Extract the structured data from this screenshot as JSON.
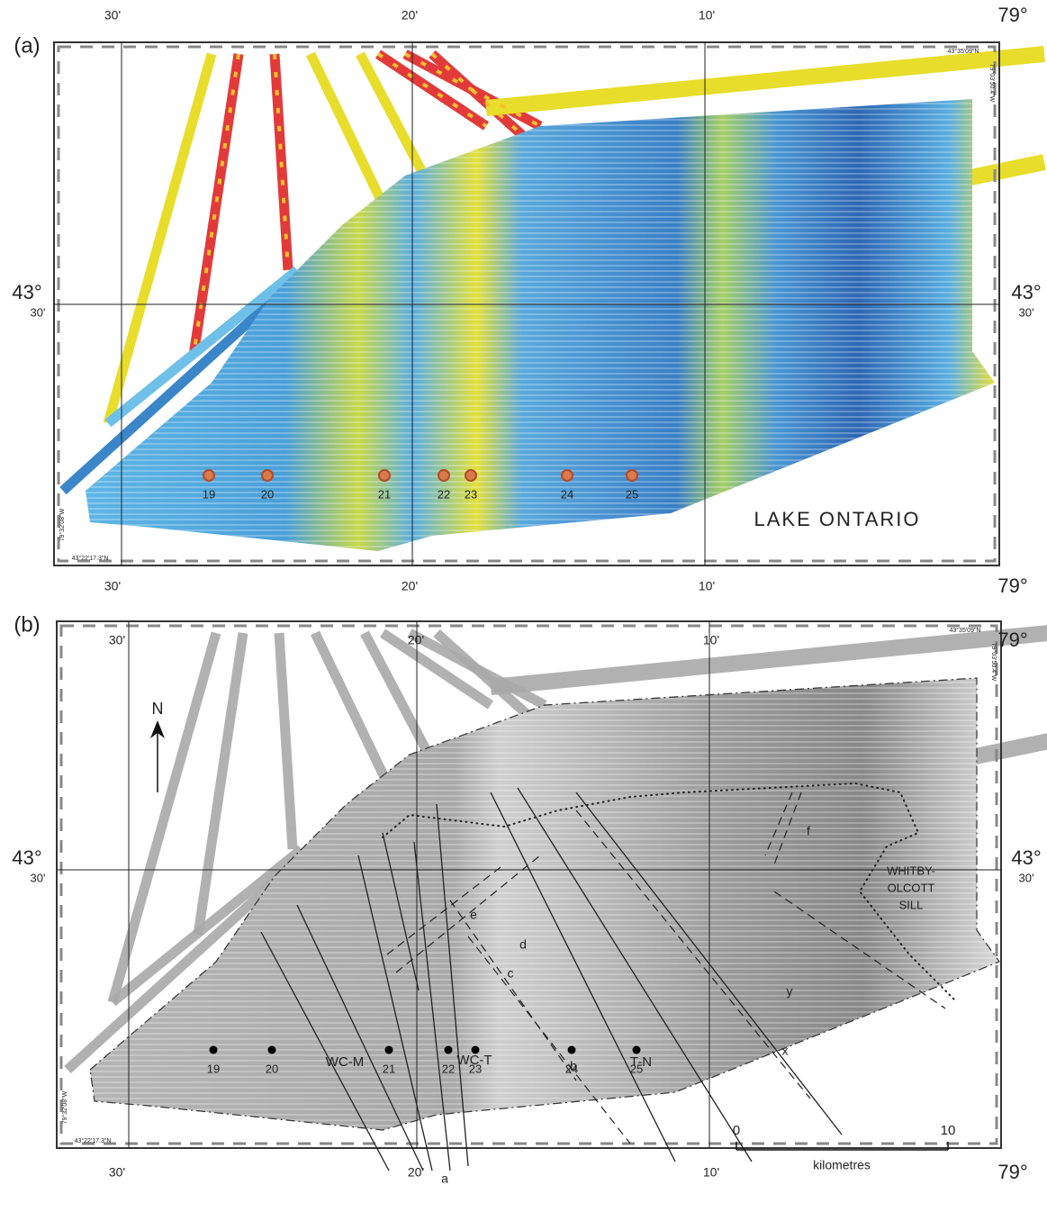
{
  "panels": [
    {
      "label": "(a)",
      "top_ticks": [
        "30'",
        "20'",
        "10'",
        "79°"
      ],
      "bottom_ticks": [
        "30'",
        "20'",
        "10'",
        "79°"
      ],
      "left_lat": [
        "43°",
        "30'"
      ],
      "right_lat": [
        "43°",
        "30'"
      ],
      "coords": [
        "43°35'09\"N",
        "79°03'50.4\"W",
        "43°22'17.3\"N",
        "79°32'08\"W"
      ],
      "sites": [
        "19",
        "20",
        "21",
        "22",
        "23",
        "24",
        "25"
      ],
      "place": "LAKE ONTARIO"
    },
    {
      "label": "(b)",
      "top_ticks": [
        "30'",
        "20'",
        "10'",
        "79°"
      ],
      "bottom_ticks": [
        "30'",
        "20'",
        "10'",
        "79°"
      ],
      "left_lat": [
        "43°",
        "30'"
      ],
      "right_lat": [
        "43°",
        "30'"
      ],
      "coords": [
        "43°35'09\"N",
        "79°03'50.4\"W",
        "43°22'17.3\"N",
        "79°32'08\"W"
      ],
      "sites": [
        "19",
        "20",
        "21",
        "22",
        "23",
        "24",
        "25"
      ],
      "north": "N",
      "zones": [
        "WC-M",
        "WC-T",
        "T-N"
      ],
      "features": [
        "a",
        "b",
        "c",
        "d",
        "e",
        "f",
        "x",
        "y"
      ],
      "sill": [
        "WHITBY-",
        "OLCOTT",
        "SILL"
      ],
      "scale": {
        "ticks": [
          0,
          10
        ],
        "unit": "kilometres"
      }
    }
  ]
}
